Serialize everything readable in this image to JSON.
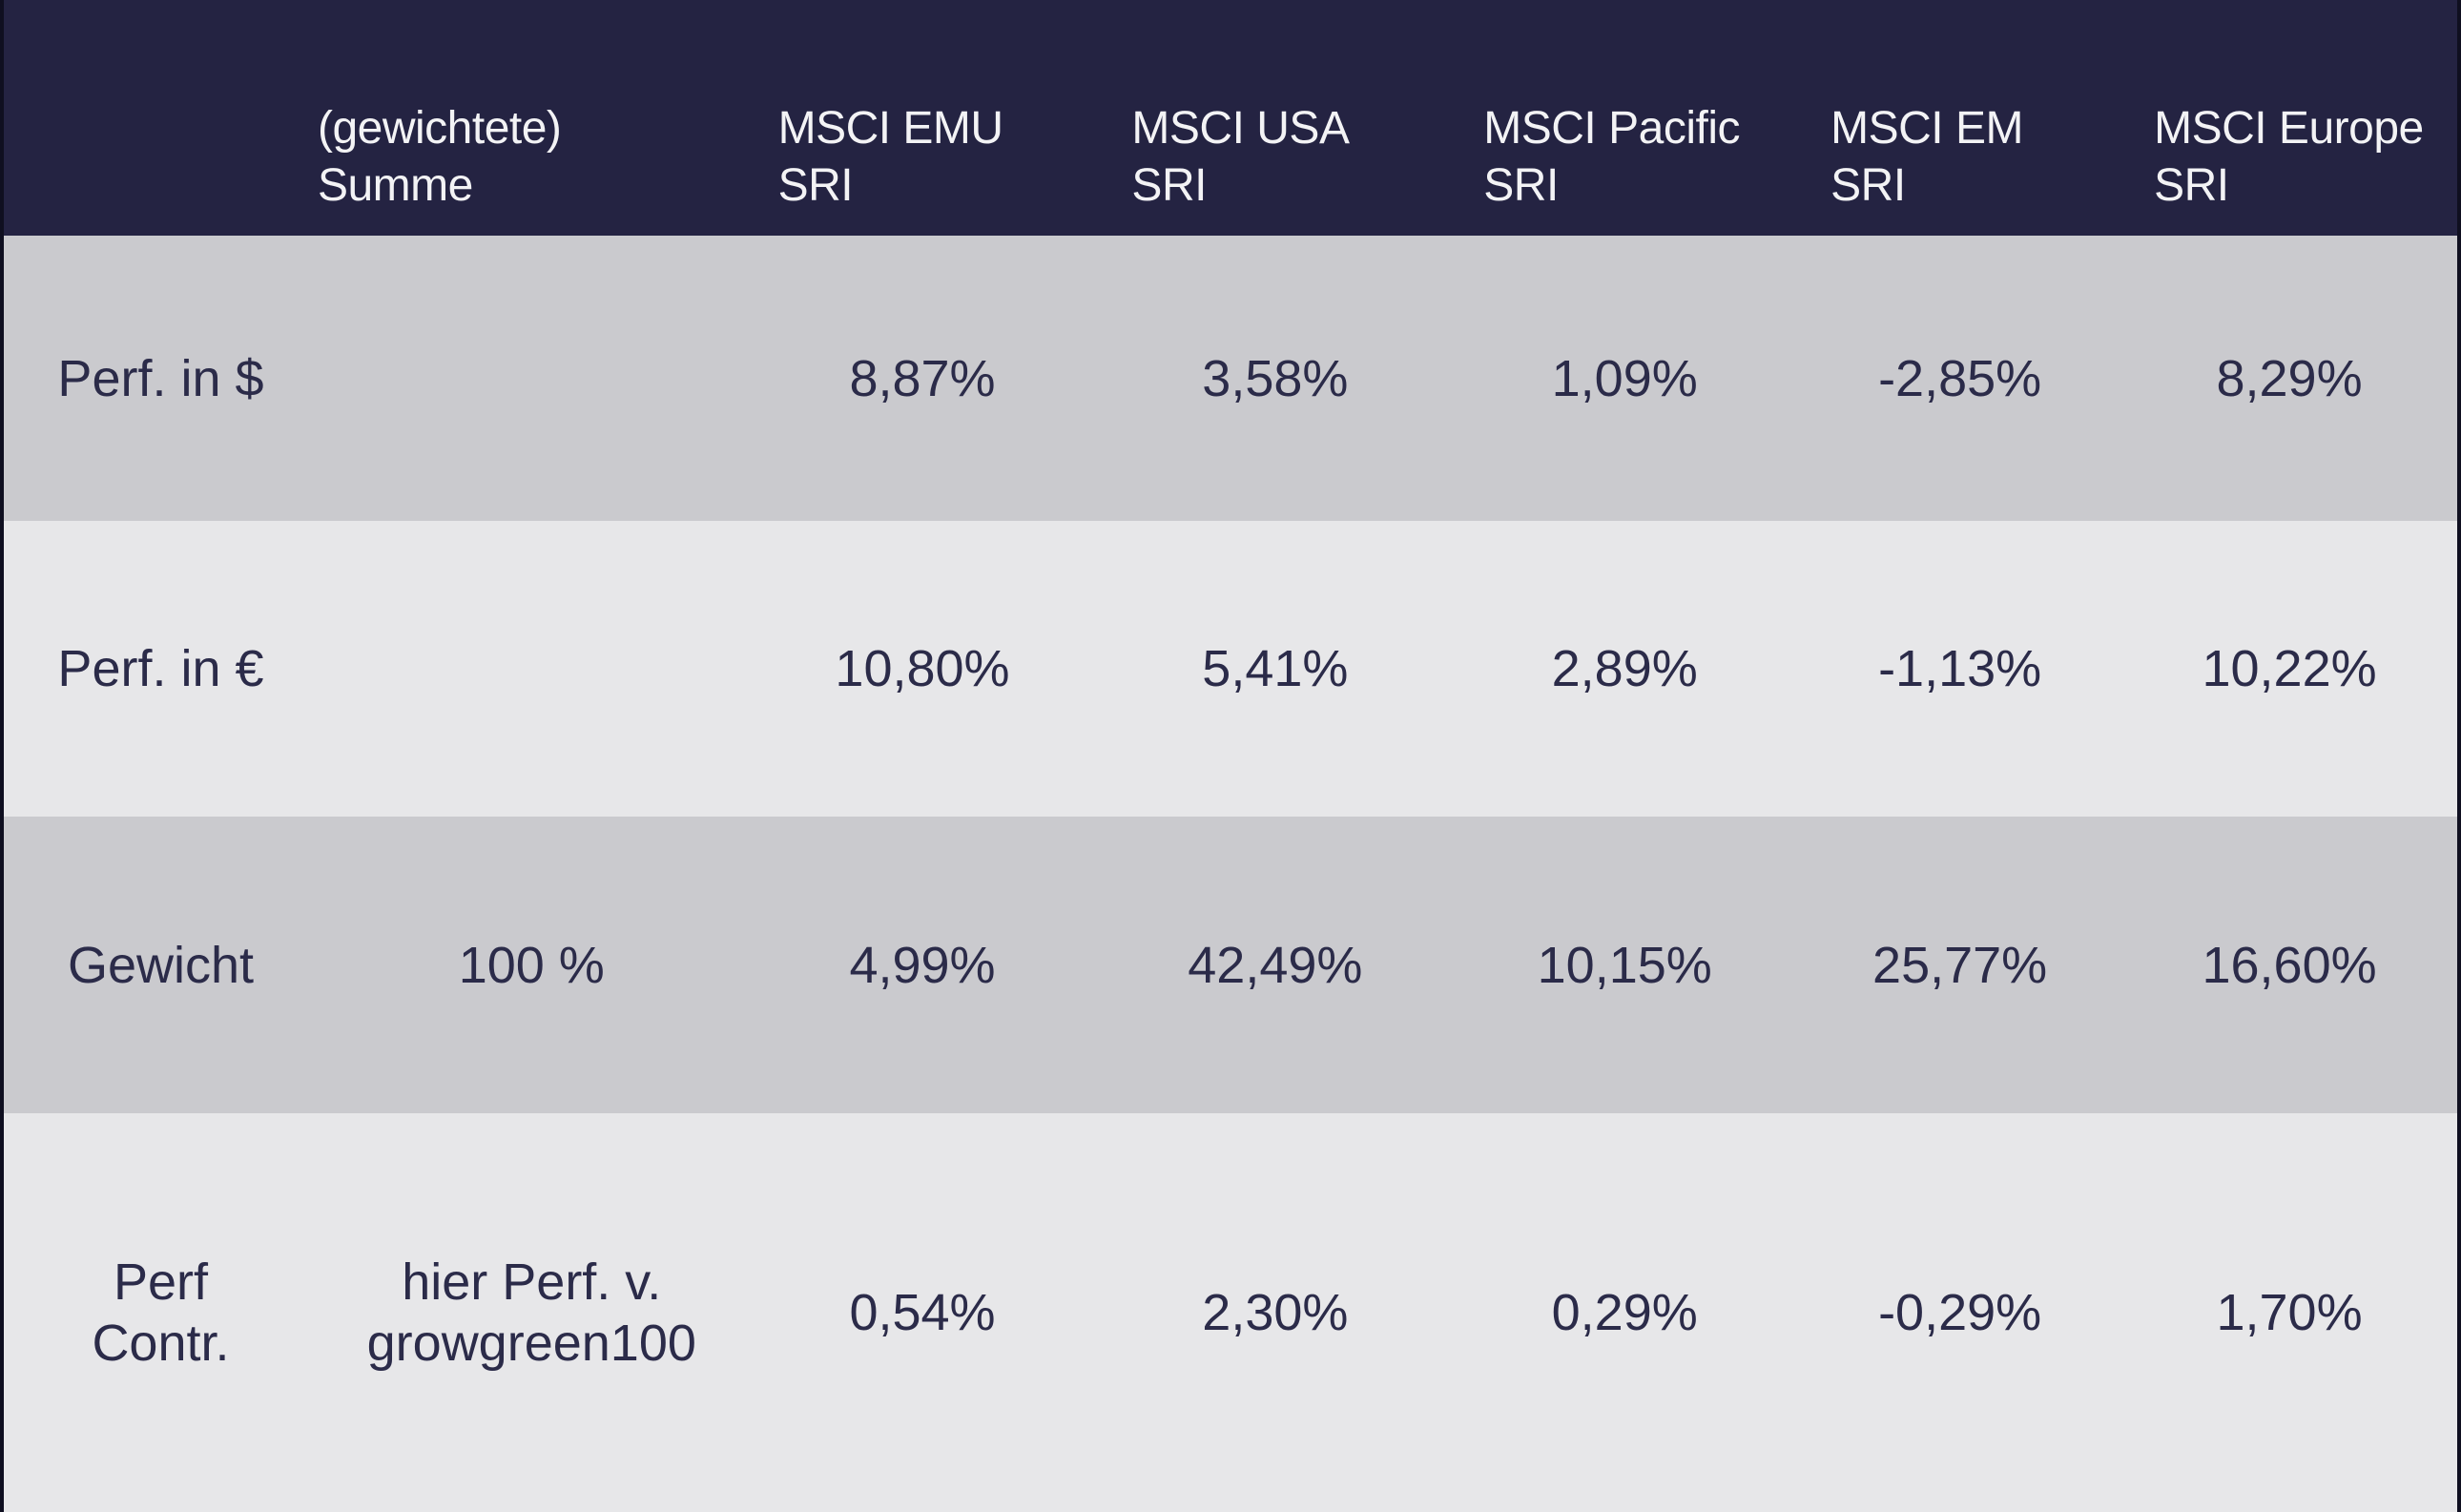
{
  "table": {
    "header": [
      {
        "line1": "(gewichtete)",
        "line2": "Summe"
      },
      {
        "line1": "MSCI EMU",
        "line2": "SRI"
      },
      {
        "line1": "MSCI USA",
        "line2": "SRI"
      },
      {
        "line1": "MSCI Pacific",
        "line2": "SRI"
      },
      {
        "line1": "MSCI EM",
        "line2": "SRI"
      },
      {
        "line1": "MSCI Europe",
        "line2": "SRI"
      }
    ],
    "rows": [
      {
        "label": "Perf. in $",
        "cells": [
          "",
          "8,87%",
          "3,58%",
          "1,09%",
          "-2,85%",
          "8,29%"
        ]
      },
      {
        "label": "Perf. in €",
        "cells": [
          "",
          "10,80%",
          "5,41%",
          "2,89%",
          "-1,13%",
          "10,22%"
        ]
      },
      {
        "label": "Gewicht",
        "cells": [
          "100 %",
          "4,99%",
          "42,49%",
          "10,15%",
          "25,77%",
          "16,60%"
        ]
      },
      {
        "label": "Perf Contr.",
        "cells": [
          "hier Perf. v. growgreen100",
          "0,54%",
          "2,30%",
          "0,29%",
          "-0,29%",
          "1,70%"
        ]
      }
    ]
  },
  "colors": {
    "header_bg": "#242342",
    "header_text": "#f3f3f5",
    "row_dark_bg": "#cacace",
    "row_light_bg": "#e7e7e9",
    "cell_text": "#2b2b49",
    "edge_border": "#0f0f20"
  },
  "chart_data": {
    "type": "table",
    "columns": [
      "",
      "(gewichtete) Summe",
      "MSCI EMU SRI",
      "MSCI USA SRI",
      "MSCI Pacific SRI",
      "MSCI EM SRI",
      "MSCI Europe SRI"
    ],
    "rows": [
      [
        "Perf. in $",
        "",
        "8,87%",
        "3,58%",
        "1,09%",
        "-2,85%",
        "8,29%"
      ],
      [
        "Perf. in €",
        "",
        "10,80%",
        "5,41%",
        "2,89%",
        "-1,13%",
        "10,22%"
      ],
      [
        "Gewicht",
        "100 %",
        "4,99%",
        "42,49%",
        "10,15%",
        "25,77%",
        "16,60%"
      ],
      [
        "Perf Contr.",
        "hier Perf. v. growgreen100",
        "0,54%",
        "2,30%",
        "0,29%",
        "-0,29%",
        "1,70%"
      ]
    ]
  }
}
